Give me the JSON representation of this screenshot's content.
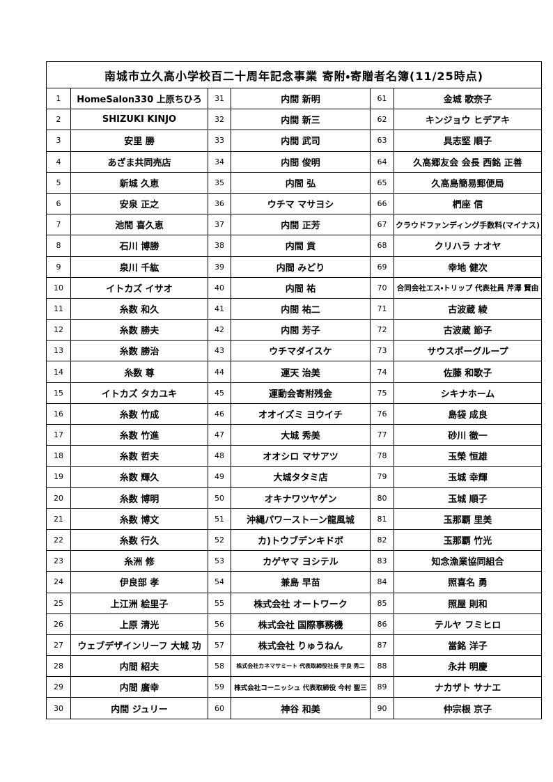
{
  "header": {
    "title": "南城市立久高小学校百二十周年記念事業 寄附・寄贈者名簿(11/25時点)"
  },
  "table": {
    "rows": [
      [
        "1",
        "HomeSalon330 上原ちひろ",
        "31",
        "内間 新明",
        "61",
        "金城 歌奈子"
      ],
      [
        "2",
        "SHIZUKI KINJO",
        "32",
        "内間 新三",
        "62",
        "キンジョウ ヒデアキ"
      ],
      [
        "3",
        "安里 勝",
        "33",
        "内間 武司",
        "63",
        "具志堅 順子"
      ],
      [
        "4",
        "あざま共同売店",
        "34",
        "内間 俊明",
        "64",
        "久高郷友会 会長 西銘 正善"
      ],
      [
        "5",
        "新城 久恵",
        "35",
        "内間 弘",
        "65",
        "久高島簡易郵便局"
      ],
      [
        "6",
        "安泉 正之",
        "36",
        "ウチマ マサヨシ",
        "66",
        "椚座 信"
      ],
      [
        "7",
        "池間 喜久恵",
        "37",
        "内間 正芳",
        "67",
        "クラウドファンディング手数料(マイナス)"
      ],
      [
        "8",
        "石川 博勝",
        "38",
        "内間 貢",
        "68",
        "クリハラ ナオヤ"
      ],
      [
        "9",
        "泉川 千紘",
        "39",
        "内間 みどり",
        "69",
        "幸地 健次"
      ],
      [
        "10",
        "イトカズ イサオ",
        "40",
        "内間 祐",
        "70",
        "合同会社エス・トリップ 代表社員 芹澤 賢由"
      ],
      [
        "11",
        "糸数 和久",
        "41",
        "内間 祐二",
        "71",
        "古波蔵 綾"
      ],
      [
        "12",
        "糸数 勝夫",
        "42",
        "内間 芳子",
        "72",
        "古波蔵 節子"
      ],
      [
        "13",
        "糸数 勝治",
        "43",
        "ウチマダイスケ",
        "73",
        "サウスポーグループ"
      ],
      [
        "14",
        "糸数 尊",
        "44",
        "運天 治美",
        "74",
        "佐藤 和歌子"
      ],
      [
        "15",
        "イトカズ タカユキ",
        "45",
        "運動会寄附残金",
        "75",
        "シキナホーム"
      ],
      [
        "16",
        "糸数 竹成",
        "46",
        "オオイズミ ヨウイチ",
        "76",
        "島袋 成良"
      ],
      [
        "17",
        "糸数 竹進",
        "47",
        "大城 秀美",
        "77",
        "砂川 徹一"
      ],
      [
        "18",
        "糸数 哲夫",
        "48",
        "オオシロ マサアツ",
        "78",
        "玉榮 恒雄"
      ],
      [
        "19",
        "糸数 輝久",
        "49",
        "大城タタミ店",
        "79",
        "玉城 幸輝"
      ],
      [
        "20",
        "糸数 博明",
        "50",
        "オキナワツヤゲン",
        "80",
        "玉城 順子"
      ],
      [
        "21",
        "糸数 博文",
        "51",
        "沖縄パワーストーン龍風城",
        "81",
        "玉那覇 里美"
      ],
      [
        "22",
        "糸数 行久",
        "52",
        "カ)トウブデンキドボ",
        "82",
        "玉那覇 竹光"
      ],
      [
        "23",
        "糸洲 修",
        "53",
        "カゲヤマ ヨシテル",
        "83",
        "知念漁業協同組合"
      ],
      [
        "24",
        "伊良部 孝",
        "54",
        "兼島 早苗",
        "84",
        "照喜名 勇"
      ],
      [
        "25",
        "上江洲 絵里子",
        "55",
        "株式会社 オートワーク",
        "85",
        "照屋 則和"
      ],
      [
        "26",
        "上原 清光",
        "56",
        "株式会社 国際事務機",
        "86",
        "テルヤ フミヒロ"
      ],
      [
        "27",
        "ウェブデザインリーフ 大城 功",
        "57",
        "株式会社 りゅうねん",
        "87",
        "當銘 洋子"
      ],
      [
        "28",
        "内間 紹夫",
        "58",
        "株式会社カネマサミート 代表取締役社長 宇良 秀二",
        "88",
        "永井 明慶"
      ],
      [
        "29",
        "内間 廣幸",
        "59",
        "株式会社コーニッシュ 代表取締役 今村 聖三",
        "89",
        "ナカザト サナエ"
      ],
      [
        "30",
        "内間 ジュリー",
        "60",
        "神谷 和美",
        "90",
        "仲宗根 京子"
      ]
    ]
  }
}
